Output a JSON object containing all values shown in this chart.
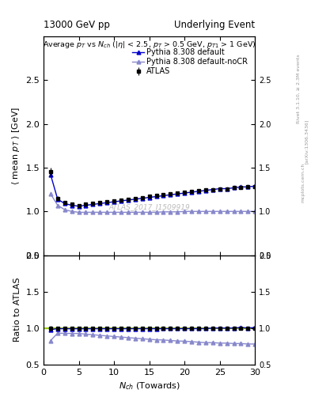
{
  "title_left": "13000 GeV pp",
  "title_right": "Underlying Event",
  "watermark": "ATLAS_2017_I1509919",
  "right_label_top": "Rivet 3.1.10, ≥ 2.3M events",
  "right_label_mid": "[arXiv:1306.3436]",
  "right_label_bot": "mcplots.cern.ch",
  "ylim_main": [
    0.5,
    3.0
  ],
  "ylim_ratio": [
    0.5,
    2.0
  ],
  "yticks_main": [
    0.5,
    1.0,
    1.5,
    2.0,
    2.5
  ],
  "yticks_ratio": [
    0.5,
    1.0,
    1.5,
    2.0
  ],
  "xlim": [
    0,
    30
  ],
  "data_nch": [
    1,
    2,
    3,
    4,
    5,
    6,
    7,
    8,
    9,
    10,
    11,
    12,
    13,
    14,
    15,
    16,
    17,
    18,
    19,
    20,
    21,
    22,
    23,
    24,
    25,
    26,
    27,
    28,
    29,
    30
  ],
  "atlas_mean_pt": [
    1.45,
    1.15,
    1.1,
    1.08,
    1.07,
    1.08,
    1.09,
    1.1,
    1.11,
    1.12,
    1.13,
    1.14,
    1.15,
    1.16,
    1.17,
    1.18,
    1.19,
    1.2,
    1.21,
    1.22,
    1.23,
    1.24,
    1.25,
    1.25,
    1.26,
    1.26,
    1.27,
    1.27,
    1.28,
    1.28
  ],
  "atlas_err": [
    0.05,
    0.02,
    0.015,
    0.012,
    0.01,
    0.01,
    0.01,
    0.01,
    0.01,
    0.01,
    0.01,
    0.01,
    0.01,
    0.01,
    0.01,
    0.01,
    0.01,
    0.01,
    0.01,
    0.01,
    0.01,
    0.01,
    0.01,
    0.01,
    0.01,
    0.01,
    0.01,
    0.01,
    0.01,
    0.01
  ],
  "pythia_default_pt": [
    1.42,
    1.14,
    1.09,
    1.07,
    1.06,
    1.07,
    1.08,
    1.09,
    1.1,
    1.11,
    1.12,
    1.13,
    1.14,
    1.15,
    1.16,
    1.17,
    1.18,
    1.19,
    1.2,
    1.21,
    1.22,
    1.23,
    1.24,
    1.25,
    1.26,
    1.26,
    1.27,
    1.28,
    1.28,
    1.29
  ],
  "pythia_nocr_pt": [
    1.2,
    1.07,
    1.02,
    1.0,
    0.99,
    0.99,
    0.99,
    0.99,
    0.99,
    0.99,
    0.99,
    0.99,
    0.99,
    0.99,
    0.99,
    0.99,
    0.995,
    0.995,
    0.995,
    1.0,
    1.0,
    1.0,
    1.0,
    1.0,
    1.0,
    1.0,
    1.0,
    1.0,
    1.0,
    1.0
  ],
  "color_atlas": "#000000",
  "color_pythia_default": "#0000cc",
  "color_pythia_nocr": "#8888cc",
  "color_ratio_line": "#99cc00",
  "legend_labels": [
    "ATLAS",
    "Pythia 8.308 default",
    "Pythia 8.308 default-noCR"
  ],
  "fig_width": 3.93,
  "fig_height": 5.12,
  "dpi": 100
}
